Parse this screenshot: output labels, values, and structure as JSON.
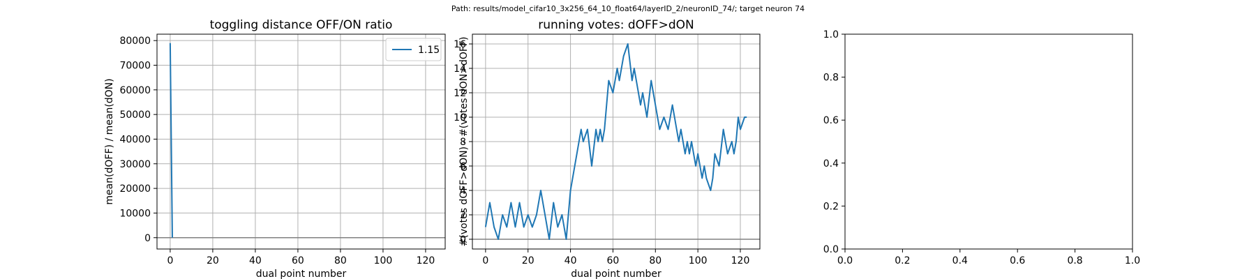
{
  "suptitle": "Path: results/model_cifar10_3x256_64_10_float64/layerID_2/neuronID_74/; target neuron 74",
  "colors": {
    "line": "#1f77b4",
    "grid": "#b0b0b0",
    "zero_line": "#808080",
    "axes": "#000000"
  },
  "chart_data": [
    {
      "type": "line",
      "title": "toggling distance OFF/ON ratio",
      "xlabel": "dual point number",
      "ylabel": "mean(dOFF) / mean(dON)",
      "xlim": [
        -6.2,
        129.2
      ],
      "ylim": [
        -4600,
        82600
      ],
      "xticks": [
        0,
        20,
        40,
        60,
        80,
        100,
        120
      ],
      "yticks": [
        0,
        10000,
        20000,
        30000,
        40000,
        50000,
        60000,
        70000,
        80000
      ],
      "grid": true,
      "zero_line": true,
      "legend": {
        "position": "top-right",
        "entries": [
          "1.15"
        ]
      },
      "series": [
        {
          "name": "1.15",
          "x": [
            0,
            1
          ],
          "y": [
            79000,
            0
          ]
        }
      ]
    },
    {
      "type": "line",
      "title": "running votes: dOFF>dON",
      "xlabel": "dual point number",
      "ylabel": "#(votes dOFF>dON) - #(votes dON>dOFF)",
      "xlim": [
        -6.2,
        129.2
      ],
      "ylim": [
        -0.8,
        16.8
      ],
      "xticks": [
        0,
        20,
        40,
        60,
        80,
        100,
        120
      ],
      "yticks": [
        0,
        2,
        4,
        6,
        8,
        10,
        12,
        14,
        16
      ],
      "grid": true,
      "zero_line": true,
      "series": [
        {
          "x": [
            0,
            2,
            4,
            6,
            8,
            10,
            12,
            14,
            16,
            18,
            20,
            22,
            24,
            26,
            28,
            30,
            32,
            34,
            36,
            38,
            40,
            42,
            43,
            44,
            45,
            46,
            48,
            50,
            52,
            53,
            54,
            55,
            56,
            58,
            60,
            61,
            62,
            63,
            64,
            65,
            67,
            69,
            70,
            71,
            72,
            73,
            74,
            75,
            76,
            78,
            80,
            82,
            84,
            86,
            87,
            88,
            89,
            90,
            91,
            92,
            94,
            95,
            96,
            97,
            98,
            99,
            100,
            101,
            102,
            103,
            104,
            106,
            107,
            108,
            110,
            112,
            114,
            116,
            117,
            118,
            119,
            120,
            122,
            123
          ],
          "y": [
            1,
            3,
            1,
            0,
            2,
            1,
            3,
            1,
            3,
            1,
            2,
            1,
            2,
            4,
            2,
            0,
            3,
            1,
            2,
            0,
            4,
            6,
            7,
            8,
            9,
            8,
            9,
            6,
            9,
            8,
            9,
            8,
            9,
            13,
            12,
            13,
            14,
            13,
            14,
            15,
            16,
            13,
            14,
            13,
            12,
            11,
            12,
            11,
            10,
            13,
            11,
            9,
            10,
            9,
            10,
            11,
            10,
            9,
            8,
            9,
            7,
            8,
            7,
            8,
            7,
            6,
            7,
            6,
            5,
            6,
            5,
            4,
            5,
            7,
            6,
            9,
            7,
            8,
            7,
            8,
            10,
            9,
            10,
            10
          ]
        }
      ]
    },
    {
      "type": "line",
      "title": "",
      "xlim": [
        0,
        1
      ],
      "ylim": [
        0,
        1
      ],
      "xticks": [
        0.0,
        0.2,
        0.4,
        0.6,
        0.8,
        1.0
      ],
      "yticks": [
        0.0,
        0.2,
        0.4,
        0.6,
        0.8,
        1.0
      ],
      "grid": false,
      "series": []
    }
  ]
}
